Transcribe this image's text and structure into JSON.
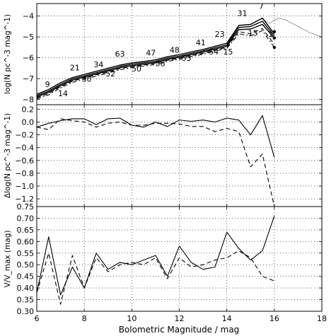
{
  "chart_data": [
    {
      "type": "line",
      "ylabel": "log(N pc^-3 mag^-1)",
      "xlim": [
        6,
        18
      ],
      "ylim": [
        -8.25,
        -3.4
      ],
      "yticks": [
        -8,
        -7,
        -6,
        -5,
        -4
      ],
      "ytick_labels": [
        "−8",
        "−7",
        "−6",
        "−5",
        "−4"
      ],
      "grid": true,
      "series": [
        {
          "role": "grey-extension",
          "x": [
            15.5,
            15.8,
            16.0,
            16.2,
            16.5,
            17.0,
            17.5,
            18.0
          ],
          "values": [
            -4.15,
            -4.35,
            -4.2,
            -4.1,
            -4.2,
            -4.5,
            -4.8,
            -5.0
          ]
        },
        {
          "role": "solid-1",
          "x": [
            6.0,
            6.5,
            7.0,
            7.5,
            8.0,
            8.5,
            9.0,
            9.5,
            10.0,
            10.5,
            11.0,
            11.5,
            12.0,
            12.5,
            13.0,
            13.5,
            14.0,
            14.5,
            15.0,
            15.5,
            16.0
          ],
          "values": [
            -7.75,
            -7.52,
            -7.2,
            -6.95,
            -6.8,
            -6.65,
            -6.5,
            -6.35,
            -6.25,
            -6.18,
            -6.1,
            -5.95,
            -5.85,
            -5.72,
            -5.6,
            -5.45,
            -5.3,
            -4.45,
            -4.4,
            -4.1,
            -4.85
          ]
        },
        {
          "role": "solid-2",
          "x": [
            6.0,
            6.5,
            7.0,
            7.5,
            8.0,
            8.5,
            9.0,
            9.5,
            10.0,
            10.5,
            11.0,
            11.5,
            12.0,
            12.5,
            13.0,
            13.5,
            14.0,
            14.5,
            15.0,
            15.5,
            16.0
          ],
          "values": [
            -7.82,
            -7.6,
            -7.28,
            -7.02,
            -6.87,
            -6.72,
            -6.57,
            -6.42,
            -6.32,
            -6.25,
            -6.17,
            -6.02,
            -5.92,
            -5.79,
            -5.67,
            -5.52,
            -5.38,
            -4.55,
            -4.5,
            -4.25,
            -4.95
          ]
        },
        {
          "role": "solid-3",
          "x": [
            6.0,
            6.5,
            7.0,
            7.5,
            8.0,
            8.5,
            9.0,
            9.5,
            10.0,
            10.5,
            11.0,
            11.5,
            12.0,
            12.5,
            13.0,
            13.5,
            14.0,
            14.5,
            15.0,
            15.5,
            16.0
          ],
          "values": [
            -7.88,
            -7.66,
            -7.34,
            -7.08,
            -6.93,
            -6.78,
            -6.63,
            -6.48,
            -6.38,
            -6.31,
            -6.23,
            -6.08,
            -5.98,
            -5.85,
            -5.73,
            -5.58,
            -5.45,
            -4.65,
            -4.62,
            -4.4,
            -5.05
          ]
        },
        {
          "role": "dashed",
          "x": [
            6.0,
            6.5,
            7.0,
            7.5,
            8.0,
            8.5,
            9.0,
            9.5,
            10.0,
            10.5,
            11.0,
            11.5,
            12.0,
            12.5,
            13.0,
            13.5,
            14.0,
            14.5,
            15.0,
            15.5,
            16.0
          ],
          "values": [
            -7.92,
            -7.72,
            -7.38,
            -7.12,
            -6.97,
            -6.82,
            -6.68,
            -6.52,
            -6.42,
            -6.35,
            -6.27,
            -6.12,
            -6.03,
            -5.9,
            -5.78,
            -5.63,
            -5.5,
            -4.75,
            -4.85,
            -4.6,
            -5.35
          ]
        },
        {
          "role": "dashdot",
          "x": [
            6.0,
            6.5,
            7.0,
            7.5,
            8.0,
            8.5,
            9.0,
            9.5,
            10.0,
            10.5,
            11.0,
            11.5,
            12.0,
            12.5,
            13.0,
            13.5,
            14.0,
            14.5,
            15.0,
            15.5,
            16.0
          ],
          "values": [
            -7.98,
            -7.78,
            -7.44,
            -7.18,
            -7.03,
            -6.88,
            -6.73,
            -6.58,
            -6.47,
            -6.4,
            -6.32,
            -6.17,
            -6.08,
            -5.95,
            -5.83,
            -5.68,
            -5.55,
            -4.85,
            -4.95,
            -4.7,
            -5.5
          ]
        }
      ],
      "markers": [
        {
          "x": 16.0,
          "y": -4.75
        },
        {
          "x": 16.0,
          "y": -5.05
        },
        {
          "x": 16.0,
          "y": -5.5
        }
      ],
      "annotations": [
        {
          "text": "9",
          "x": 6.45,
          "y": -7.4
        },
        {
          "text": "14",
          "x": 7.1,
          "y": -7.85
        },
        {
          "text": "21",
          "x": 7.6,
          "y": -6.6
        },
        {
          "text": "30",
          "x": 8.1,
          "y": -7.15
        },
        {
          "text": "34",
          "x": 8.6,
          "y": -6.45
        },
        {
          "text": "52",
          "x": 9.1,
          "y": -6.9
        },
        {
          "text": "63",
          "x": 9.5,
          "y": -5.95
        },
        {
          "text": "50",
          "x": 10.2,
          "y": -6.65
        },
        {
          "text": "47",
          "x": 10.8,
          "y": -5.9
        },
        {
          "text": "58",
          "x": 11.2,
          "y": -6.4
        },
        {
          "text": "48",
          "x": 11.8,
          "y": -5.75
        },
        {
          "text": "53",
          "x": 12.3,
          "y": -6.15
        },
        {
          "text": "41",
          "x": 12.9,
          "y": -5.4
        },
        {
          "text": "54",
          "x": 13.45,
          "y": -5.85
        },
        {
          "text": "23",
          "x": 13.7,
          "y": -5.0
        },
        {
          "text": "15",
          "x": 14.05,
          "y": -5.85
        },
        {
          "text": "31",
          "x": 14.65,
          "y": -4.0
        },
        {
          "text": "7",
          "x": 15.45,
          "y": -3.65
        },
        {
          "text": "15",
          "x": 15.1,
          "y": -4.95
        },
        {
          "text": "1",
          "x": 15.85,
          "y": -5.0
        }
      ]
    },
    {
      "type": "line",
      "ylabel": "Δlog(N pc^-3 mag^-1)",
      "xlim": [
        6,
        18
      ],
      "ylim": [
        -1.32,
        0.27
      ],
      "yticks": [
        0.2,
        0.0,
        -0.2,
        -0.4,
        -0.6,
        -0.8,
        -1.0,
        -1.2
      ],
      "ytick_labels": [
        "0.2",
        "0.0",
        "−0.2",
        "−0.4",
        "−0.6",
        "−0.8",
        "−1.0",
        "−1.2"
      ],
      "grid": true,
      "series": [
        {
          "role": "solid",
          "x": [
            6.0,
            6.5,
            7.0,
            7.5,
            8.0,
            8.5,
            9.0,
            9.5,
            10.0,
            10.5,
            11.0,
            11.5,
            12.0,
            12.5,
            13.0,
            13.5,
            14.0,
            14.5,
            15.0,
            15.5,
            16.0
          ],
          "values": [
            -0.08,
            -0.02,
            0.02,
            0.05,
            0.05,
            -0.04,
            0.05,
            0.06,
            -0.05,
            -0.08,
            0.0,
            -0.07,
            0.03,
            0.01,
            0.03,
            0.0,
            0.06,
            0.03,
            -0.2,
            0.1,
            -0.55
          ]
        },
        {
          "role": "dashed",
          "x": [
            6.0,
            6.5,
            7.0,
            7.5,
            8.0,
            8.5,
            9.0,
            9.5,
            10.0,
            10.5,
            11.0,
            11.5,
            12.0,
            12.5,
            13.0,
            13.5,
            14.0,
            14.5,
            15.0,
            15.5,
            16.0
          ],
          "values": [
            -0.08,
            -0.12,
            0.05,
            0.02,
            0.0,
            -0.08,
            -0.02,
            0.0,
            -0.05,
            -0.05,
            -0.02,
            -0.02,
            -0.03,
            -0.07,
            -0.07,
            -0.15,
            -0.1,
            -0.15,
            -0.7,
            -0.5,
            -1.32
          ]
        }
      ]
    },
    {
      "type": "line",
      "xlabel": "Bolometric Magnitude / mag",
      "ylabel": "V/V_max (mag)",
      "xlim": [
        6,
        18
      ],
      "ylim": [
        0.3,
        0.75
      ],
      "xticks": [
        6,
        8,
        10,
        12,
        14,
        16,
        18
      ],
      "xtick_labels": [
        "6",
        "8",
        "10",
        "12",
        "14",
        "16",
        "18"
      ],
      "yticks": [
        0.3,
        0.35,
        0.4,
        0.45,
        0.5,
        0.55,
        0.6,
        0.65,
        0.7,
        0.75
      ],
      "ytick_labels": [
        "0.30",
        "0.35",
        "0.40",
        "0.45",
        "0.50",
        "0.55",
        "0.60",
        "0.65",
        "0.70",
        "0.75"
      ],
      "grid": true,
      "series": [
        {
          "role": "solid",
          "x": [
            6.0,
            6.5,
            7.0,
            7.5,
            8.0,
            8.5,
            9.0,
            9.5,
            10.0,
            10.5,
            11.0,
            11.5,
            12.0,
            12.5,
            13.0,
            13.5,
            14.0,
            14.5,
            15.0,
            15.5,
            16.0
          ],
          "values": [
            0.38,
            0.62,
            0.37,
            0.49,
            0.4,
            0.55,
            0.48,
            0.51,
            0.5,
            0.52,
            0.54,
            0.45,
            0.58,
            0.51,
            0.48,
            0.49,
            0.64,
            0.57,
            0.52,
            0.56,
            0.71
          ]
        },
        {
          "role": "dashed",
          "x": [
            6.0,
            6.5,
            7.0,
            7.5,
            8.0,
            8.5,
            9.0,
            9.5,
            10.0,
            10.5,
            11.0,
            11.5,
            12.0,
            12.5,
            13.0,
            13.5,
            14.0,
            14.5,
            15.0,
            15.5,
            16.0
          ],
          "values": [
            0.38,
            0.55,
            0.33,
            0.54,
            0.4,
            0.53,
            0.47,
            0.5,
            0.51,
            0.5,
            0.53,
            0.44,
            0.53,
            0.49,
            0.5,
            0.52,
            0.53,
            0.56,
            0.53,
            0.45,
            0.43
          ]
        }
      ]
    }
  ]
}
